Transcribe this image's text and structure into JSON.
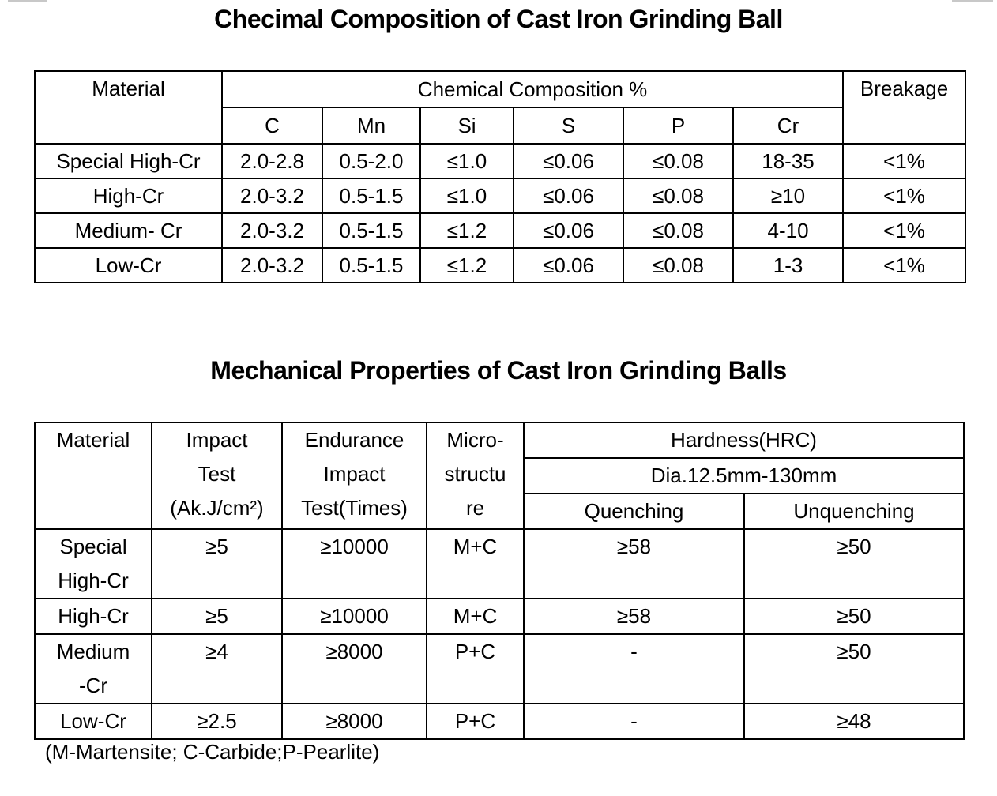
{
  "chem": {
    "title": "Checimal Composition of Cast Iron Grinding Ball",
    "headers": {
      "material": "Material",
      "composition": "Chemical Composition %",
      "breakage": "Breakage",
      "elements": [
        "C",
        "Mn",
        "Si",
        "S",
        "P",
        "Cr"
      ]
    },
    "rows": [
      [
        "Special High-Cr",
        "2.0-2.8",
        "0.5-2.0",
        "≤1.0",
        "≤0.06",
        "≤0.08",
        "18-35",
        "<1%"
      ],
      [
        "High-Cr",
        "2.0-3.2",
        "0.5-1.5",
        "≤1.0",
        "≤0.06",
        "≤0.08",
        "≥10",
        "<1%"
      ],
      [
        "Medium- Cr",
        "2.0-3.2",
        "0.5-1.5",
        "≤1.2",
        "≤0.06",
        "≤0.08",
        "4-10",
        "<1%"
      ],
      [
        "Low-Cr",
        "2.0-3.2",
        "0.5-1.5",
        "≤1.2",
        "≤0.06",
        "≤0.08",
        "1-3",
        "<1%"
      ]
    ]
  },
  "mech": {
    "title": "Mechanical Properties of Cast Iron Grinding Balls",
    "headers": {
      "material": "Material",
      "impact": "Impact\nTest\n(Ak.J/cm²)",
      "endurance": "Endurance\nImpact\nTest(Times)",
      "micro": "Micro-\nstructu\nre",
      "hardness": "Hardness(HRC)",
      "dia": "Dia.12.5mm-130mm",
      "quenching": "Quenching",
      "unquenching": "Unquenching"
    },
    "rows": [
      [
        "Special\nHigh-Cr",
        "≥5",
        "≥10000",
        "M+C",
        "≥58",
        "≥50"
      ],
      [
        "High-Cr",
        "≥5",
        "≥10000",
        "M+C",
        "≥58",
        "≥50"
      ],
      [
        "Medium\n-Cr",
        "≥4",
        "≥8000",
        "P+C",
        "-",
        "≥50"
      ],
      [
        "Low-Cr",
        "≥2.5",
        "≥8000",
        "P+C",
        "-",
        "≥48"
      ]
    ],
    "footnote": "(M-Martensite; C-Carbide;P-Pearlite)"
  }
}
